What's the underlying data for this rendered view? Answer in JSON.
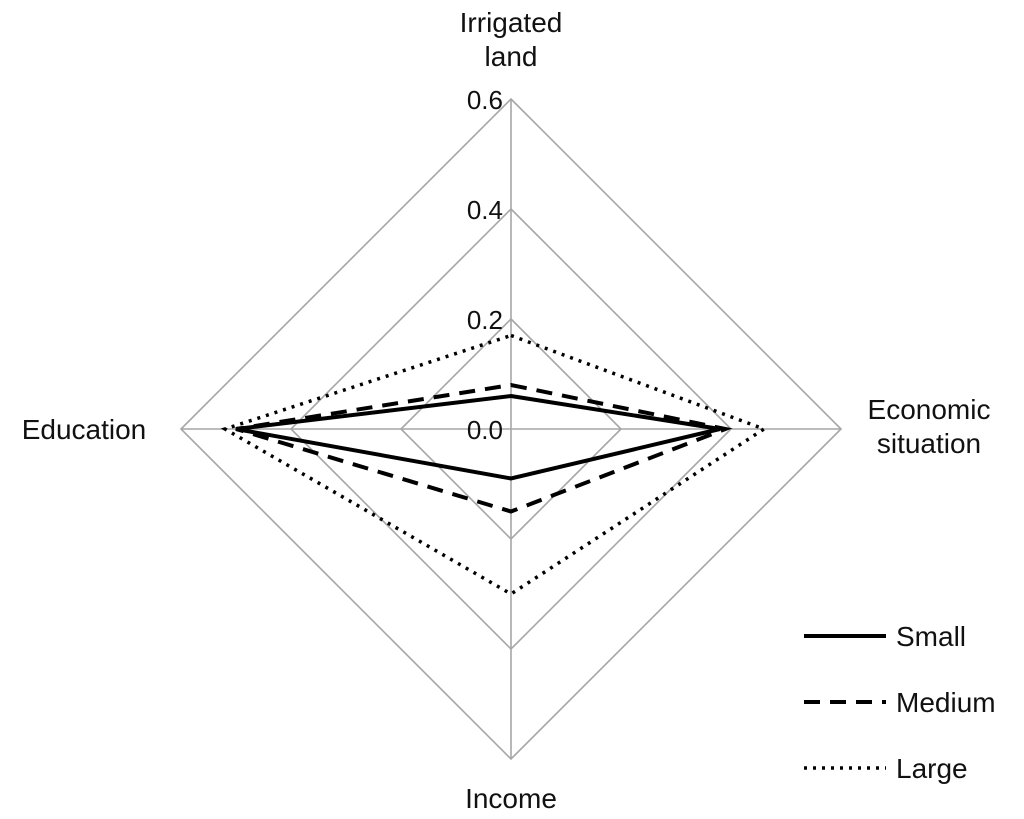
{
  "chart_data": {
    "type": "radar",
    "axes": [
      {
        "key": "irrigated",
        "label_lines": [
          "Irrigated",
          "land"
        ]
      },
      {
        "key": "economic",
        "label_lines": [
          "Economic",
          "situation"
        ]
      },
      {
        "key": "income",
        "label_lines": [
          "Income"
        ]
      },
      {
        "key": "education",
        "label_lines": [
          "Education"
        ]
      }
    ],
    "ticks": [
      "0.0",
      "0.2",
      "0.4",
      "0.6"
    ],
    "rlim": [
      0,
      0.6
    ],
    "grid": true,
    "legend_position": "bottom-right",
    "series": [
      {
        "name": "Small",
        "style": "solid",
        "values": [
          0.06,
          0.38,
          0.09,
          0.5
        ]
      },
      {
        "name": "Medium",
        "style": "dashed",
        "values": [
          0.08,
          0.39,
          0.15,
          0.5
        ]
      },
      {
        "name": "Large",
        "style": "dotted",
        "values": [
          0.17,
          0.46,
          0.3,
          0.52
        ]
      }
    ],
    "colors": {
      "series": "#000000",
      "grid": "#a6a6a6"
    }
  }
}
